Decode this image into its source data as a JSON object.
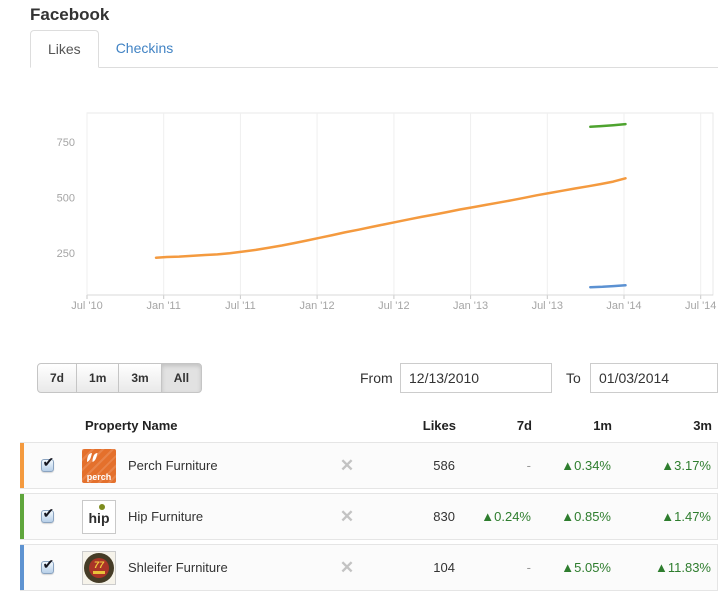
{
  "header": {
    "title": "Facebook"
  },
  "tabs": [
    {
      "label": "Likes",
      "active": true
    },
    {
      "label": "Checkins",
      "active": false
    }
  ],
  "controls": {
    "ranges": [
      {
        "label": "7d",
        "active": false
      },
      {
        "label": "1m",
        "active": false
      },
      {
        "label": "3m",
        "active": false
      },
      {
        "label": "All",
        "active": true
      }
    ],
    "from_label": "From",
    "from_value": "12/13/2010",
    "to_label": "To",
    "to_value": "01/03/2014"
  },
  "table": {
    "columns": {
      "name": "Property Name",
      "likes": "Likes",
      "d7": "7d",
      "m1": "1m",
      "m3": "3m"
    },
    "rows": [
      {
        "name": "Perch Furniture",
        "logo_text": "perch",
        "likes": "586",
        "d7": "-",
        "m1": "▲0.34%",
        "m3": "▲3.17%",
        "color": "#f49a3f",
        "checked": true
      },
      {
        "name": "Hip Furniture",
        "logo_text": "hip",
        "likes": "830",
        "d7": "▲0.24%",
        "m1": "▲0.85%",
        "m3": "▲1.47%",
        "color": "#5fa63c",
        "checked": true
      },
      {
        "name": "Shleifer Furniture",
        "logo_text": "77",
        "likes": "104",
        "d7": "-",
        "m1": "▲5.05%",
        "m3": "▲11.83%",
        "color": "#5e93d1",
        "checked": true
      }
    ]
  },
  "chart_data": {
    "type": "line",
    "title": "",
    "xlabel": "",
    "ylabel": "",
    "grid": "vertical-only",
    "legend": "none",
    "xlim": [
      2010.5,
      2014.58
    ],
    "ylim": [
      60,
      880
    ],
    "y_ticks": [
      250,
      500,
      750
    ],
    "x_ticks": [
      {
        "t": 2010.5,
        "label": "Jul '10"
      },
      {
        "t": 2011.0,
        "label": "Jan '11"
      },
      {
        "t": 2011.5,
        "label": "Jul '11"
      },
      {
        "t": 2012.0,
        "label": "Jan '12"
      },
      {
        "t": 2012.5,
        "label": "Jul '12"
      },
      {
        "t": 2013.0,
        "label": "Jan '13"
      },
      {
        "t": 2013.5,
        "label": "Jul '13"
      },
      {
        "t": 2014.0,
        "label": "Jan '14"
      },
      {
        "t": 2014.5,
        "label": "Jul '14"
      }
    ],
    "series": [
      {
        "name": "Perch Furniture",
        "color": "#f49a3f",
        "points": [
          [
            2010.95,
            228
          ],
          [
            2011.02,
            231
          ],
          [
            2011.1,
            233
          ],
          [
            2011.18,
            236
          ],
          [
            2011.27,
            240
          ],
          [
            2011.35,
            243
          ],
          [
            2011.43,
            248
          ],
          [
            2011.52,
            256
          ],
          [
            2011.6,
            263
          ],
          [
            2011.68,
            272
          ],
          [
            2011.77,
            283
          ],
          [
            2011.85,
            294
          ],
          [
            2011.93,
            305
          ],
          [
            2012.02,
            318
          ],
          [
            2012.1,
            330
          ],
          [
            2012.18,
            342
          ],
          [
            2012.27,
            354
          ],
          [
            2012.35,
            366
          ],
          [
            2012.43,
            377
          ],
          [
            2012.52,
            390
          ],
          [
            2012.6,
            401
          ],
          [
            2012.68,
            412
          ],
          [
            2012.77,
            423
          ],
          [
            2012.85,
            434
          ],
          [
            2012.93,
            445
          ],
          [
            2013.02,
            456
          ],
          [
            2013.1,
            466
          ],
          [
            2013.18,
            476
          ],
          [
            2013.27,
            487
          ],
          [
            2013.35,
            498
          ],
          [
            2013.43,
            509
          ],
          [
            2013.52,
            520
          ],
          [
            2013.6,
            530
          ],
          [
            2013.68,
            540
          ],
          [
            2013.77,
            550
          ],
          [
            2013.85,
            560
          ],
          [
            2013.93,
            571
          ],
          [
            2014.01,
            586
          ]
        ]
      },
      {
        "name": "Hip Furniture",
        "color": "#4ea32f",
        "points": [
          [
            2013.78,
            818
          ],
          [
            2013.85,
            821
          ],
          [
            2013.93,
            825
          ],
          [
            2014.01,
            830
          ]
        ]
      },
      {
        "name": "Shleifer Furniture",
        "color": "#5b91d2",
        "points": [
          [
            2013.78,
            95
          ],
          [
            2013.86,
            97
          ],
          [
            2013.93,
            100
          ],
          [
            2014.01,
            104
          ]
        ]
      }
    ]
  }
}
